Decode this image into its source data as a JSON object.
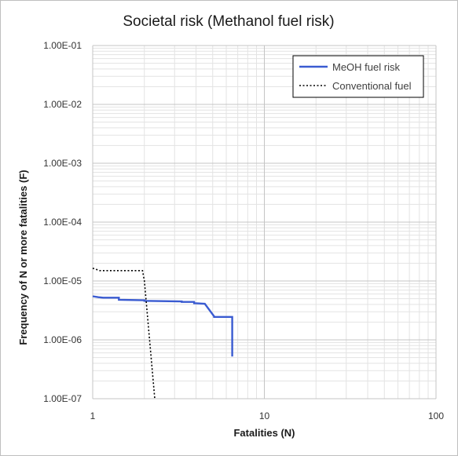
{
  "chart_data": {
    "type": "line",
    "title": "Societal risk (Methanol fuel risk)",
    "xlabel": "Fatalities (N)",
    "ylabel": "Frequency of N or more fatalities (F)",
    "xscale": "log",
    "yscale": "log",
    "xlim": [
      1,
      100
    ],
    "ylim": [
      1e-07,
      0.1
    ],
    "x_ticks": [
      1,
      10,
      100
    ],
    "x_tick_labels": [
      "1",
      "10",
      "100"
    ],
    "y_ticks": [
      0.1,
      0.01,
      0.001,
      0.0001,
      1e-05,
      1e-06,
      1e-07
    ],
    "y_tick_labels": [
      "1.00E-01",
      "1.00E-02",
      "1.00E-03",
      "1.00E-04",
      "1.00E-05",
      "1.00E-06",
      "1.00E-07"
    ],
    "grid": true,
    "legend_position": "top-right",
    "series": [
      {
        "name": "MeOH fuel risk",
        "color": "#3a5bd1",
        "style": "solid",
        "x": [
          1.0,
          1.08,
          1.15,
          1.42,
          1.42,
          2.0,
          2.0,
          3.3,
          3.3,
          3.9,
          3.9,
          4.5,
          5.1,
          5.1,
          6.5,
          6.5
        ],
        "y": [
          5.5e-06,
          5.3e-06,
          5.2e-06,
          5.2e-06,
          4.8e-06,
          4.7e-06,
          4.6e-06,
          4.5e-06,
          4.4e-06,
          4.4e-06,
          4.2e-06,
          4.1e-06,
          2.5e-06,
          2.45e-06,
          2.45e-06,
          5.2e-07
        ]
      },
      {
        "name": "Conventional fuel",
        "color": "#000000",
        "style": "dotted",
        "x": [
          1.0,
          1.1,
          1.95,
          2.0,
          2.3
        ],
        "y": [
          1.65e-05,
          1.5e-05,
          1.5e-05,
          1e-05,
          1e-07
        ]
      }
    ]
  }
}
